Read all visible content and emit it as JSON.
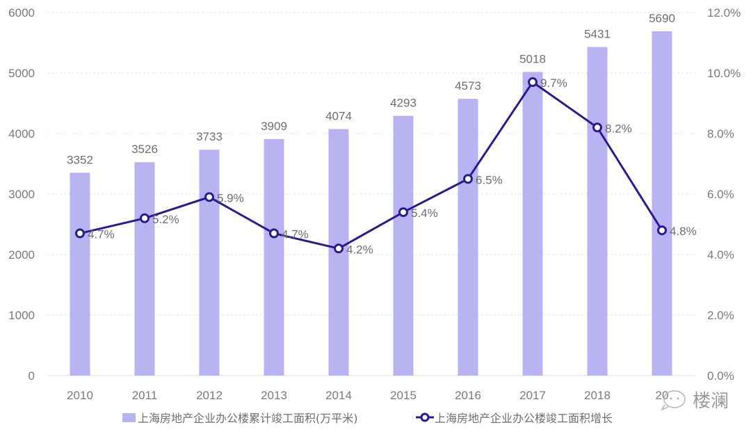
{
  "chart_data": {
    "type": "bar+line",
    "title": "",
    "categories": [
      "2010",
      "2011",
      "2012",
      "2013",
      "2014",
      "2015",
      "2016",
      "2017",
      "2018",
      "2019"
    ],
    "series": [
      {
        "name": "上海房地产企业办公楼累计竣工面积(万平米)",
        "type": "bar",
        "axis": "left",
        "color": "#b9b3f2",
        "values": [
          3352,
          3526,
          3733,
          3909,
          4074,
          4293,
          4573,
          5018,
          5431,
          5690
        ],
        "labels": [
          "3352",
          "3526",
          "3733",
          "3909",
          "4074",
          "4293",
          "4573",
          "5018",
          "5431",
          "5690"
        ]
      },
      {
        "name": "上海房地产企业办公楼竣工面积增长",
        "type": "line",
        "axis": "right",
        "color": "#2a1a8c",
        "values": [
          4.7,
          5.2,
          5.9,
          4.7,
          4.2,
          5.4,
          6.5,
          9.7,
          8.2,
          4.8
        ],
        "labels": [
          "4.7%",
          "5.2%",
          "5.9%",
          "4.7%",
          "4.2%",
          "5.4%",
          "6.5%",
          "9.7%",
          "8.2%",
          "4.8%"
        ]
      }
    ],
    "y_left": {
      "ticks": [
        "0",
        "1000",
        "2000",
        "3000",
        "4000",
        "5000",
        "6000"
      ],
      "range": [
        0,
        6000
      ]
    },
    "y_right": {
      "ticks": [
        "0.0%",
        "2.0%",
        "4.0%",
        "6.0%",
        "8.0%",
        "10.0%",
        "12.0%"
      ],
      "range": [
        0,
        12
      ]
    },
    "x_tick_labels": [
      "2010",
      "2011",
      "2012",
      "2013",
      "2014",
      "2015",
      "2016",
      "2017",
      "2018",
      "20"
    ],
    "grid": "horizontal dashed",
    "legend_position": "bottom"
  },
  "legend": {
    "bar_label": "上海房地产企业办公楼累计竣工面积(万平米)",
    "line_label": "上海房地产企业办公楼竣工面积增长"
  },
  "watermark": {
    "text": "楼澜",
    "icon": "wechat-icon"
  }
}
